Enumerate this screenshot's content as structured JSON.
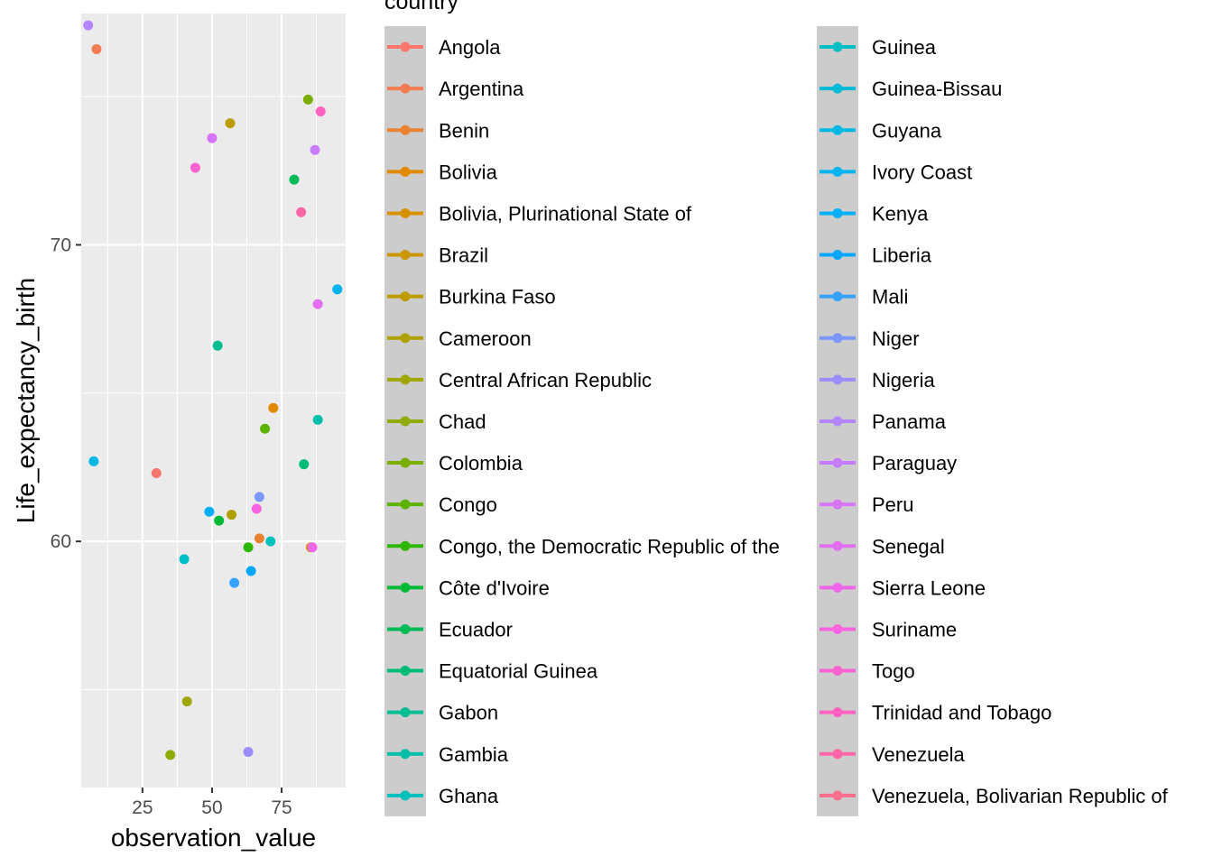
{
  "chart_data": {
    "type": "scatter",
    "xlabel": "observation_value",
    "ylabel": "Life_expectancy_birth",
    "xlim": [
      3,
      98
    ],
    "ylim": [
      51.7,
      77.8
    ],
    "x_ticks": [
      25,
      50,
      75
    ],
    "y_ticks": [
      60,
      70
    ],
    "grid": true,
    "legend_title": "country",
    "legend_position": "right",
    "legend": [
      {
        "label": "Angola",
        "color": "#F8766D"
      },
      {
        "label": "Argentina",
        "color": "#F27D52"
      },
      {
        "label": "Benin",
        "color": "#EA8331"
      },
      {
        "label": "Bolivia",
        "color": "#E18A00"
      },
      {
        "label": "Bolivia, Plurinational State of",
        "color": "#D79000"
      },
      {
        "label": "Brazil",
        "color": "#CB9600"
      },
      {
        "label": "Burkina Faso",
        "color": "#BE9C00"
      },
      {
        "label": "Cameroon",
        "color": "#B0A100"
      },
      {
        "label": "Central African Republic",
        "color": "#A0A600"
      },
      {
        "label": "Chad",
        "color": "#8EAB00"
      },
      {
        "label": "Colombia",
        "color": "#7AAF00"
      },
      {
        "label": "Congo",
        "color": "#5EB300"
      },
      {
        "label": "Congo, the Democratic Republic of the",
        "color": "#2FB600"
      },
      {
        "label": "Côte d'Ivoire",
        "color": "#00B934"
      },
      {
        "label": "Ecuador",
        "color": "#00BB58"
      },
      {
        "label": "Equatorial Guinea",
        "color": "#00BC76"
      },
      {
        "label": "Gabon",
        "color": "#00BE91"
      },
      {
        "label": "Gambia",
        "color": "#00BFAA"
      },
      {
        "label": "Ghana",
        "color": "#00C0BB"
      },
      {
        "label": "Guinea",
        "color": "#00BFC4"
      },
      {
        "label": "Guinea-Bissau",
        "color": "#00BBD7"
      },
      {
        "label": "Guyana",
        "color": "#00B8E5"
      },
      {
        "label": "Ivory Coast",
        "color": "#00B4F0"
      },
      {
        "label": "Kenya",
        "color": "#00AEF9"
      },
      {
        "label": "Liberia",
        "color": "#00A7FF"
      },
      {
        "label": "Mali",
        "color": "#35A2FF"
      },
      {
        "label": "Niger",
        "color": "#7A97FF"
      },
      {
        "label": "Nigeria",
        "color": "#9C8DFF"
      },
      {
        "label": "Panama",
        "color": "#B385FF"
      },
      {
        "label": "Paraguay",
        "color": "#C77CFF"
      },
      {
        "label": "Peru",
        "color": "#D774F9"
      },
      {
        "label": "Senegal",
        "color": "#E46EF2"
      },
      {
        "label": "Sierra Leone",
        "color": "#F066EA"
      },
      {
        "label": "Suriname",
        "color": "#F863DF"
      },
      {
        "label": "Togo",
        "color": "#FD62D2"
      },
      {
        "label": "Trinidad and Tobago",
        "color": "#FF62C1"
      },
      {
        "label": "Venezuela",
        "color": "#FF66A8"
      },
      {
        "label": "Venezuela, Bolivarian Republic of",
        "color": "#FC6D8E"
      }
    ],
    "points": [
      {
        "x": 5.5,
        "y": 77.4,
        "color": "#B385FF"
      },
      {
        "x": 8.5,
        "y": 76.6,
        "color": "#F27D52"
      },
      {
        "x": 84.5,
        "y": 74.9,
        "color": "#7AAF00"
      },
      {
        "x": 89,
        "y": 74.5,
        "color": "#FF62C1"
      },
      {
        "x": 56.5,
        "y": 74.1,
        "color": "#BE9C00"
      },
      {
        "x": 50,
        "y": 73.6,
        "color": "#D774F9"
      },
      {
        "x": 87,
        "y": 73.2,
        "color": "#C77CFF"
      },
      {
        "x": 44,
        "y": 72.6,
        "color": "#FD62D2"
      },
      {
        "x": 79.5,
        "y": 72.2,
        "color": "#00BB58"
      },
      {
        "x": 82,
        "y": 71.1,
        "color": "#FF66A8"
      },
      {
        "x": 95,
        "y": 68.5,
        "color": "#00B4F0"
      },
      {
        "x": 88,
        "y": 68.0,
        "color": "#E46EF2"
      },
      {
        "x": 52,
        "y": 66.6,
        "color": "#00BE91"
      },
      {
        "x": 72,
        "y": 64.5,
        "color": "#E18A00"
      },
      {
        "x": 88,
        "y": 64.1,
        "color": "#00BFAA"
      },
      {
        "x": 69,
        "y": 63.8,
        "color": "#5EB300"
      },
      {
        "x": 83,
        "y": 62.6,
        "color": "#00BC76"
      },
      {
        "x": 7.5,
        "y": 62.7,
        "color": "#00B8E5"
      },
      {
        "x": 30,
        "y": 62.3,
        "color": "#F8766D"
      },
      {
        "x": 67,
        "y": 61.5,
        "color": "#7A97FF"
      },
      {
        "x": 66,
        "y": 61.1,
        "color": "#F863DF"
      },
      {
        "x": 49,
        "y": 61.0,
        "color": "#00AEF9"
      },
      {
        "x": 57,
        "y": 60.9,
        "color": "#B0A100"
      },
      {
        "x": 52.5,
        "y": 60.7,
        "color": "#00B934"
      },
      {
        "x": 67,
        "y": 60.1,
        "color": "#EA8331"
      },
      {
        "x": 71,
        "y": 60.0,
        "color": "#00C0BB"
      },
      {
        "x": 85.5,
        "y": 59.8,
        "color": "#CB9600"
      },
      {
        "x": 86,
        "y": 59.8,
        "color": "#F066EA"
      },
      {
        "x": 63,
        "y": 59.8,
        "color": "#2FB600"
      },
      {
        "x": 40,
        "y": 59.4,
        "color": "#00BFC4"
      },
      {
        "x": 64,
        "y": 59.0,
        "color": "#00A7FF"
      },
      {
        "x": 58,
        "y": 58.6,
        "color": "#35A2FF"
      },
      {
        "x": 41,
        "y": 54.6,
        "color": "#A0A600"
      },
      {
        "x": 35,
        "y": 52.8,
        "color": "#8EAB00"
      },
      {
        "x": 63,
        "y": 52.9,
        "color": "#9C8DFF"
      }
    ]
  }
}
